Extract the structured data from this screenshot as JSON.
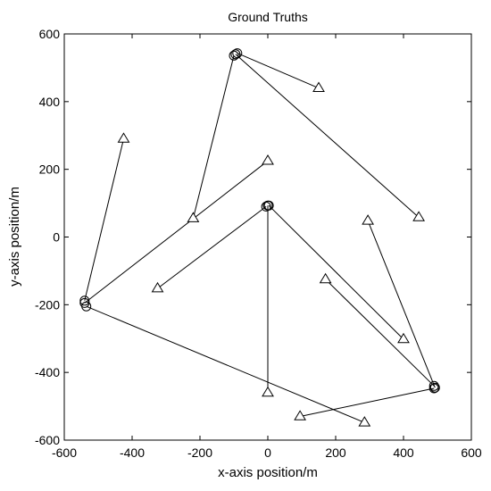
{
  "chart_data": {
    "type": "scatter",
    "title": "Ground Truths",
    "xlabel": "x-axis position/m",
    "ylabel": "y-axis position/m",
    "xlim": [
      -600,
      600
    ],
    "ylim": [
      -600,
      600
    ],
    "x_ticks": [
      "-600",
      "-400",
      "-200",
      "0",
      "200",
      "400",
      "600"
    ],
    "y_ticks": [
      "600",
      "400",
      "200",
      "0",
      "-200",
      "-400",
      "-600"
    ],
    "grid": false,
    "legend": "none",
    "marker_legend": {
      "start": "triangle",
      "end": "circle"
    },
    "series": [
      {
        "values": [
          [
            150,
            440
          ],
          [
            -90,
            543
          ]
        ]
      },
      {
        "values": [
          [
            -220,
            55
          ],
          [
            -100,
            536
          ]
        ]
      },
      {
        "values": [
          [
            445,
            58
          ],
          [
            -95,
            540
          ]
        ]
      },
      {
        "values": [
          [
            -425,
            290
          ],
          [
            -540,
            -188
          ]
        ]
      },
      {
        "values": [
          [
            0,
            225
          ],
          [
            -540,
            -195
          ]
        ]
      },
      {
        "values": [
          [
            -325,
            -152
          ],
          [
            -5,
            90
          ]
        ]
      },
      {
        "values": [
          [
            0,
            -460
          ],
          [
            0,
            93
          ]
        ]
      },
      {
        "values": [
          [
            400,
            -302
          ],
          [
            3,
            93
          ]
        ]
      },
      {
        "values": [
          [
            285,
            -548
          ],
          [
            -535,
            -205
          ]
        ]
      },
      {
        "values": [
          [
            170,
            -125
          ],
          [
            490,
            -440
          ]
        ]
      },
      {
        "values": [
          [
            295,
            48
          ],
          [
            493,
            -445
          ]
        ]
      },
      {
        "values": [
          [
            95,
            -530
          ],
          [
            490,
            -447
          ]
        ]
      }
    ]
  }
}
